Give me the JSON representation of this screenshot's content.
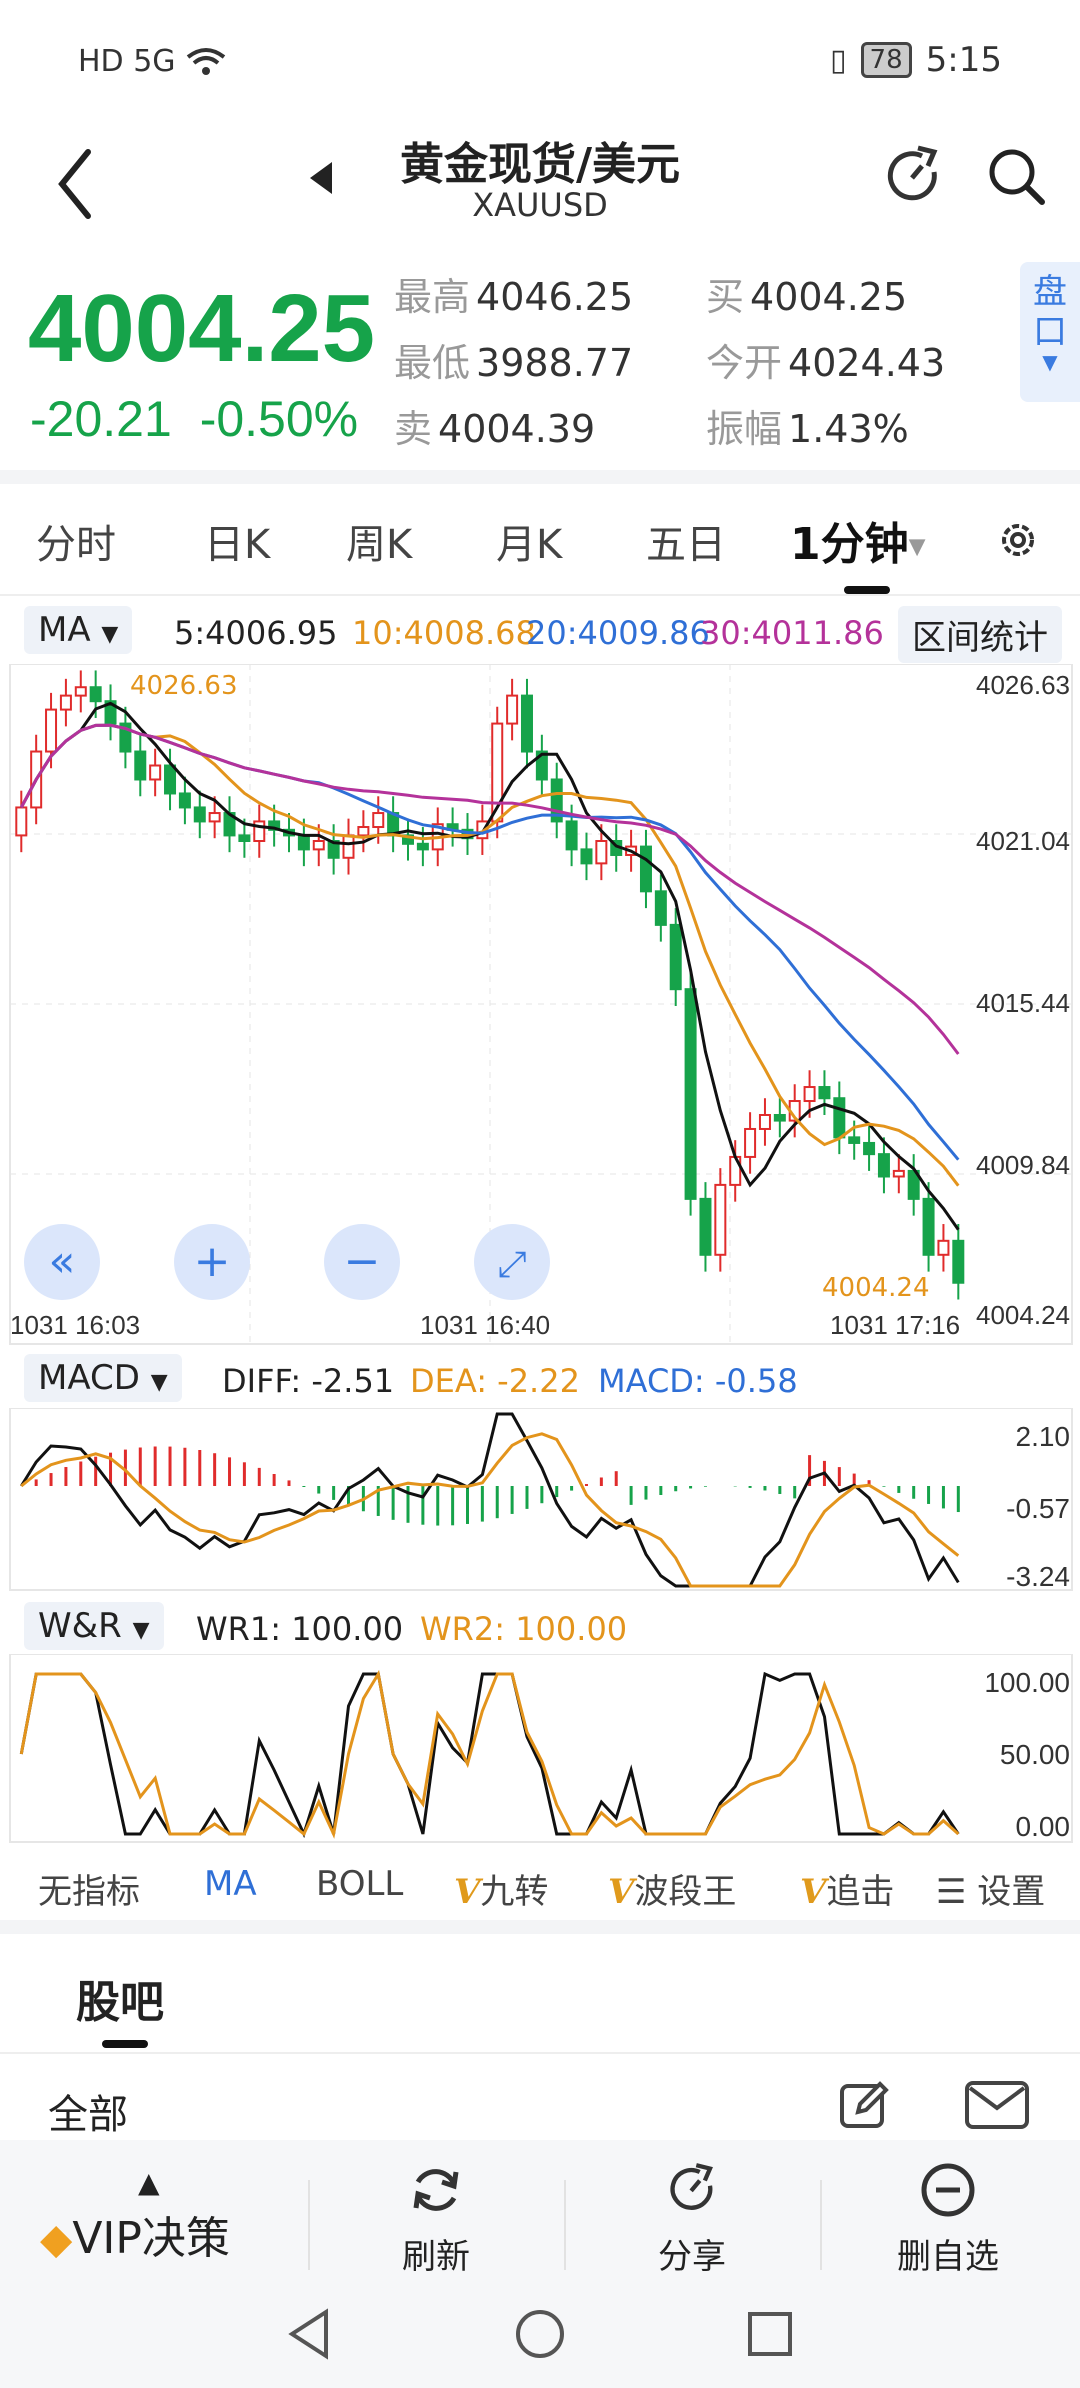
{
  "status": {
    "left": "HD 5G",
    "battery": "78",
    "time": "5:15"
  },
  "header": {
    "title": "黄金现货/美元",
    "subtitle": "XAUUSD"
  },
  "quote": {
    "price": "4004.25",
    "change": "-20.21",
    "change_pct": "-0.50%",
    "high_label": "最高",
    "high": "4046.25",
    "low_label": "最低",
    "low": "3988.77",
    "sell_label": "卖",
    "sell": "4004.39",
    "buy_label": "买",
    "buy": "4004.25",
    "open_label": "今开",
    "open": "4024.43",
    "amp_label": "振幅",
    "amp": "1.43%",
    "pankou": "盘口"
  },
  "tabs": [
    "分时",
    "日K",
    "周K",
    "月K",
    "五日",
    "1分钟"
  ],
  "ma_row": {
    "selector": "MA",
    "ma5": "5:4006.95",
    "ma10": "10:4008.68",
    "ma20": "20:4009.86",
    "ma30": "30:4011.86",
    "range_btn": "区间统计"
  },
  "main_chart": {
    "y_labels": [
      "4026.63",
      "4021.04",
      "4015.44",
      "4009.84",
      "4004.24"
    ],
    "max_label": "4026.63",
    "last_label": "4004.24",
    "time_labels": [
      "1031  16:03",
      "1031  16:40",
      "1031  17:16"
    ]
  },
  "macd": {
    "selector": "MACD",
    "diff": "DIFF: -2.51",
    "dea": "DEA: -2.22",
    "macd": "MACD: -0.58",
    "y_labels": [
      "2.10",
      "-0.57",
      "-3.24"
    ]
  },
  "wr": {
    "selector": "W&R",
    "wr1": "WR1: 100.00",
    "wr2": "WR2: 100.00",
    "y_labels": [
      "100.00",
      "50.00",
      "0.00"
    ]
  },
  "toolbar": {
    "none": "无指标",
    "ma": "MA",
    "boll": "BOLL",
    "jiuzhuan": "九转",
    "boduan": "波段王",
    "zhuiji": "追击",
    "settings": "设置",
    "v": "V"
  },
  "guba": {
    "title": "股吧",
    "all": "全部"
  },
  "bottom_nav": {
    "vip": "VIP决策",
    "refresh": "刷新",
    "share": "分享",
    "remove": "删自选"
  },
  "colors": {
    "up": "#e02b2b",
    "down": "#16a34a",
    "ma5": "#111111",
    "ma10": "#e3941c",
    "ma20": "#2f6fd6",
    "ma30": "#b4329a"
  }
}
